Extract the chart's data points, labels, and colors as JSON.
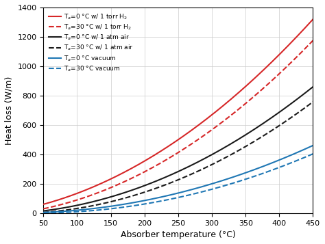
{
  "title": "",
  "xlabel": "Absorber temperature (°C)",
  "ylabel": "Heat loss (W/m)",
  "xlim": [
    50,
    450
  ],
  "ylim": [
    0,
    1400
  ],
  "xticks": [
    50,
    100,
    150,
    200,
    250,
    300,
    350,
    400,
    450
  ],
  "yticks": [
    0,
    200,
    400,
    600,
    800,
    1000,
    1200,
    1400
  ],
  "curves": [
    {
      "label": "T$_a$=0 °C w/ 1 torr H$_2$",
      "color": "#d62728",
      "linestyle": "solid",
      "type": "H2_0"
    },
    {
      "label": "T$_a$=30 °C w/ 1 torr H$_2$",
      "color": "#d62728",
      "linestyle": "dashed",
      "type": "H2_30"
    },
    {
      "label": "T$_a$=0 °C w/ 1 atm air",
      "color": "#1a1a1a",
      "linestyle": "solid",
      "type": "air_0"
    },
    {
      "label": "T$_a$=30 °C w/ 1 atm air",
      "color": "#1a1a1a",
      "linestyle": "dashed",
      "type": "air_30"
    },
    {
      "label": "T$_a$=0 °C vacuum",
      "color": "#1f77b4",
      "linestyle": "solid",
      "type": "vac_0"
    },
    {
      "label": "T$_a$=30 °C vacuum",
      "color": "#1f77b4",
      "linestyle": "dashed",
      "type": "vac_30"
    }
  ],
  "background_color": "#ffffff",
  "grid_color": "#cccccc"
}
